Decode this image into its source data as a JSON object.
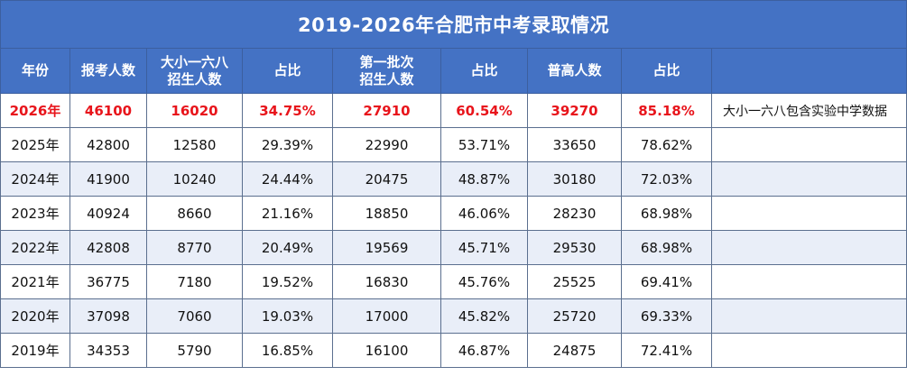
{
  "title": "2019-2026年合肥市中考录取情况",
  "headers": [
    [
      "年份"
    ],
    [
      "报考人数"
    ],
    [
      "大小一六八",
      "招生人数"
    ],
    [
      "占比"
    ],
    [
      "第一批次",
      "招生人数"
    ],
    [
      "占比"
    ],
    [
      "普高人数"
    ],
    [
      "占比"
    ],
    [
      ""
    ]
  ],
  "rows": [
    [
      "2026年",
      "46100",
      "16020",
      "34.75%",
      "27910",
      "60.54%",
      "39270",
      "85.18%",
      "大小一六八包含实验中学数据"
    ],
    [
      "2025年",
      "42800",
      "12580",
      "29.39%",
      "22990",
      "53.71%",
      "33650",
      "78.62%",
      ""
    ],
    [
      "2024年",
      "41900",
      "10240",
      "24.44%",
      "20475",
      "48.87%",
      "30180",
      "72.03%",
      ""
    ],
    [
      "2023年",
      "40924",
      "8660",
      "21.16%",
      "18850",
      "46.06%",
      "28230",
      "68.98%",
      ""
    ],
    [
      "2022年",
      "42808",
      "8770",
      "20.49%",
      "19569",
      "45.71%",
      "29530",
      "68.98%",
      ""
    ],
    [
      "2021年",
      "36775",
      "7180",
      "19.52%",
      "16830",
      "45.76%",
      "25525",
      "69.41%",
      ""
    ],
    [
      "2020年",
      "37098",
      "7060",
      "19.03%",
      "17000",
      "45.82%",
      "25720",
      "69.33%",
      ""
    ],
    [
      "2019年",
      "34353",
      "5790",
      "16.85%",
      "16100",
      "46.87%",
      "24875",
      "72.41%",
      ""
    ]
  ],
  "colors": {
    "header_bg": "#4472c4",
    "header_text": "#ffffff",
    "highlight_text": "#e8141b",
    "alt_row_bg": "#e9eef8",
    "border": "#5b6f8f"
  }
}
